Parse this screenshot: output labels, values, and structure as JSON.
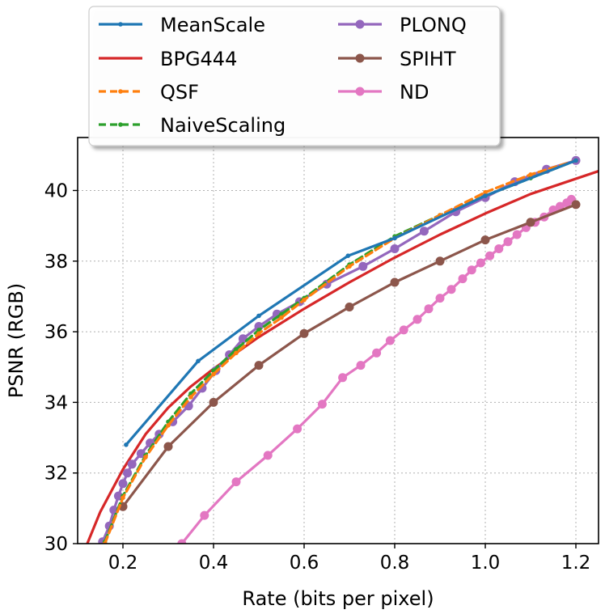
{
  "chart_data": {
    "type": "line",
    "title": "",
    "xlabel": "Rate (bits per pixel)",
    "ylabel": "PSNR (RGB)",
    "xlim": [
      0.1,
      1.25
    ],
    "ylim": [
      30,
      41.5
    ],
    "grid": true,
    "legend_position": "top (above plot), two columns",
    "xticks": [
      0.2,
      0.4,
      0.6,
      0.8,
      1.0,
      1.2
    ],
    "xtick_labels": [
      "0.2",
      "0.4",
      "0.6",
      "0.8",
      "1.0",
      "1.2"
    ],
    "yticks": [
      30,
      32,
      34,
      36,
      38,
      40
    ],
    "ytick_labels": [
      "30",
      "32",
      "34",
      "36",
      "38",
      "40"
    ],
    "series": [
      {
        "name": "MeanScale",
        "color": "#1f77b4",
        "style": "solid",
        "marker": "small",
        "x": [
          0.207,
          0.366,
          0.5,
          0.697,
          0.8,
          1.0,
          1.2
        ],
        "y": [
          32.8,
          35.17,
          36.45,
          38.15,
          38.65,
          39.85,
          40.85
        ]
      },
      {
        "name": "BPG444",
        "color": "#d62728",
        "style": "solid",
        "marker": "none",
        "x": [
          0.118,
          0.15,
          0.2,
          0.25,
          0.3,
          0.35,
          0.4,
          0.5,
          0.6,
          0.7,
          0.8,
          0.9,
          1.0,
          1.1,
          1.25
        ],
        "y": [
          29.9,
          30.9,
          32.1,
          33.1,
          33.85,
          34.45,
          34.95,
          35.85,
          36.65,
          37.4,
          38.1,
          38.75,
          39.35,
          39.9,
          40.55
        ]
      },
      {
        "name": "QSF",
        "color": "#ff7f0e",
        "style": "dashed",
        "marker": "small",
        "x": [
          0.16,
          0.2,
          0.25,
          0.3,
          0.35,
          0.4,
          0.45,
          0.5,
          0.55,
          0.6,
          0.7,
          0.8,
          0.9,
          1.0,
          1.1,
          1.2
        ],
        "y": [
          30.0,
          31.3,
          32.45,
          33.35,
          34.15,
          34.8,
          35.4,
          35.95,
          36.4,
          36.9,
          37.85,
          38.65,
          39.3,
          39.95,
          40.45,
          40.85
        ]
      },
      {
        "name": "NaiveScaling",
        "color": "#2ca02c",
        "style": "dashed",
        "marker": "small",
        "x": [
          0.16,
          0.2,
          0.25,
          0.3,
          0.35,
          0.4,
          0.45,
          0.5,
          0.55,
          0.6,
          0.7,
          0.8,
          0.9,
          1.0,
          1.1,
          1.2
        ],
        "y": [
          30.05,
          31.35,
          32.5,
          33.45,
          34.25,
          34.9,
          35.5,
          36.05,
          36.5,
          36.95,
          37.9,
          38.7,
          39.3,
          39.85,
          40.35,
          40.85
        ]
      },
      {
        "name": "PLONQ",
        "color": "#9467bd",
        "style": "solid",
        "marker": "circle",
        "x": [
          0.155,
          0.17,
          0.18,
          0.19,
          0.2,
          0.21,
          0.22,
          0.24,
          0.26,
          0.28,
          0.31,
          0.345,
          0.375,
          0.405,
          0.435,
          0.465,
          0.5,
          0.54,
          0.59,
          0.65,
          0.73,
          0.8,
          0.865,
          0.935,
          1.0,
          1.065,
          1.135,
          1.2
        ],
        "y": [
          30.05,
          30.5,
          30.95,
          31.35,
          31.7,
          32.0,
          32.25,
          32.55,
          32.85,
          33.1,
          33.45,
          33.9,
          34.4,
          34.9,
          35.35,
          35.8,
          36.15,
          36.5,
          36.85,
          37.35,
          37.85,
          38.35,
          38.85,
          39.4,
          39.8,
          40.25,
          40.6,
          40.85
        ]
      },
      {
        "name": "SPIHT",
        "color": "#8c564b",
        "style": "solid",
        "marker": "circle",
        "x": [
          0.2,
          0.3,
          0.4,
          0.5,
          0.6,
          0.7,
          0.8,
          0.9,
          1.0,
          1.1,
          1.2
        ],
        "y": [
          31.05,
          32.75,
          34.0,
          35.05,
          35.95,
          36.7,
          37.4,
          38.0,
          38.6,
          39.1,
          39.6
        ]
      },
      {
        "name": "ND",
        "color": "#e377c2",
        "style": "solid",
        "marker": "circle",
        "x": [
          0.33,
          0.38,
          0.45,
          0.52,
          0.585,
          0.64,
          0.685,
          0.725,
          0.76,
          0.79,
          0.82,
          0.85,
          0.875,
          0.9,
          0.925,
          0.95,
          0.97,
          0.99,
          1.01,
          1.03,
          1.05,
          1.07,
          1.09,
          1.11,
          1.13,
          1.15,
          1.165,
          1.18,
          1.19
        ],
        "y": [
          30.0,
          30.8,
          31.75,
          32.5,
          33.25,
          33.95,
          34.7,
          35.05,
          35.4,
          35.75,
          36.05,
          36.35,
          36.65,
          36.95,
          37.2,
          37.5,
          37.75,
          37.95,
          38.15,
          38.35,
          38.55,
          38.75,
          38.95,
          39.1,
          39.25,
          39.45,
          39.55,
          39.65,
          39.75
        ]
      }
    ]
  }
}
